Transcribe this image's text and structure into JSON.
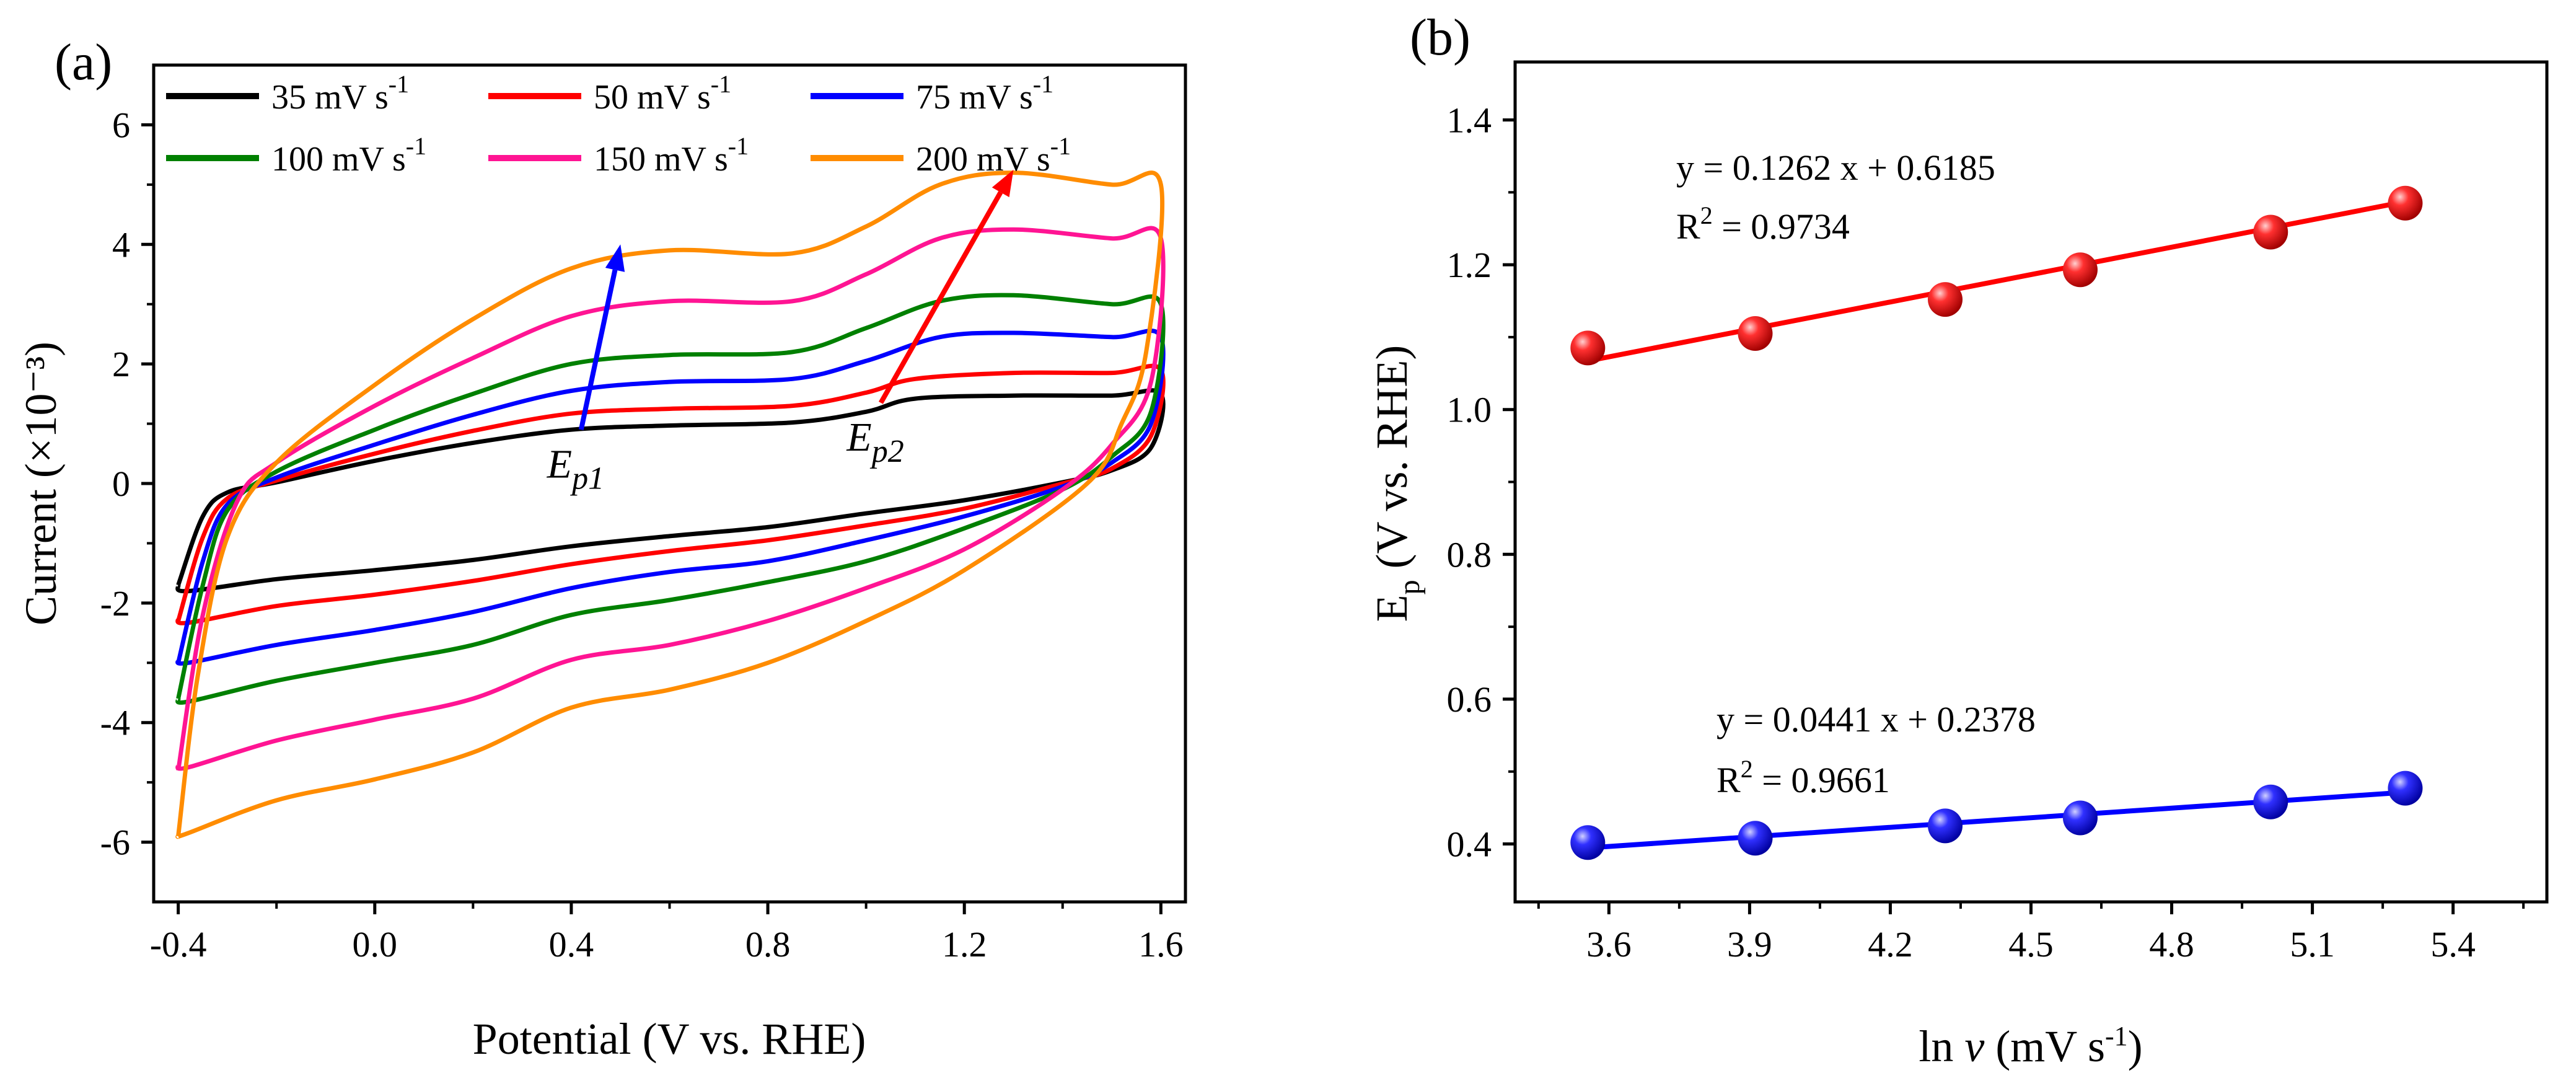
{
  "chart_data": [
    {
      "panel": "(a)",
      "type": "line",
      "title": "",
      "xlabel": "Potential (V vs. RHE)",
      "ylabel": "Current (×10⁻³)",
      "xlim": [
        -0.45,
        1.65
      ],
      "ylim": [
        -7,
        7
      ],
      "x_ticks": [
        "-0.4",
        "0.0",
        "0.4",
        "0.8",
        "1.2",
        "1.6"
      ],
      "x_tick_values": [
        -0.4,
        0.0,
        0.4,
        0.8,
        1.2,
        1.6
      ],
      "y_ticks": [
        "-6",
        "-4",
        "-2",
        "0",
        "2",
        "4",
        "6"
      ],
      "y_tick_values": [
        -6,
        -4,
        -2,
        0,
        2,
        4,
        6
      ],
      "legend_position": "top",
      "series": [
        {
          "name": "35 mV s-1",
          "label_main": "35 mV s",
          "label_sup": "-1",
          "color": "#000000",
          "scale": 1.0,
          "anodic": [
            [
              -0.4,
              -1.7
            ],
            [
              -0.35,
              -0.55
            ],
            [
              -0.3,
              -0.15
            ],
            [
              -0.2,
              0.02
            ],
            [
              0.0,
              0.38
            ],
            [
              0.2,
              0.68
            ],
            [
              0.4,
              0.9
            ],
            [
              0.6,
              0.97
            ],
            [
              0.85,
              1.02
            ],
            [
              1.0,
              1.2
            ],
            [
              1.1,
              1.42
            ],
            [
              1.3,
              1.47
            ],
            [
              1.5,
              1.47
            ],
            [
              1.6,
              1.5
            ]
          ],
          "cathodic": [
            [
              1.6,
              1.5
            ],
            [
              1.58,
              0.6
            ],
            [
              1.5,
              0.22
            ],
            [
              1.4,
              0.02
            ],
            [
              1.2,
              -0.28
            ],
            [
              1.0,
              -0.5
            ],
            [
              0.8,
              -0.73
            ],
            [
              0.6,
              -0.88
            ],
            [
              0.4,
              -1.05
            ],
            [
              0.2,
              -1.28
            ],
            [
              0.0,
              -1.45
            ],
            [
              -0.2,
              -1.6
            ],
            [
              -0.38,
              -1.8
            ],
            [
              -0.4,
              -1.7
            ]
          ]
        },
        {
          "name": "50 mV s-1",
          "label_main": "50 mV s",
          "label_sup": "-1",
          "color": "#ff0000",
          "scale": 1.26,
          "anodic": [
            [
              -0.4,
              -2.3
            ],
            [
              -0.35,
              -0.9
            ],
            [
              -0.3,
              -0.25
            ],
            [
              -0.2,
              0.05
            ],
            [
              0.0,
              0.5
            ],
            [
              0.2,
              0.88
            ],
            [
              0.4,
              1.17
            ],
            [
              0.6,
              1.25
            ],
            [
              0.85,
              1.3
            ],
            [
              1.0,
              1.52
            ],
            [
              1.1,
              1.75
            ],
            [
              1.3,
              1.85
            ],
            [
              1.5,
              1.85
            ],
            [
              1.6,
              1.9
            ]
          ],
          "cathodic": [
            [
              1.6,
              1.9
            ],
            [
              1.58,
              0.8
            ],
            [
              1.5,
              0.25
            ],
            [
              1.4,
              0.0
            ],
            [
              1.2,
              -0.42
            ],
            [
              1.0,
              -0.7
            ],
            [
              0.8,
              -0.95
            ],
            [
              0.6,
              -1.13
            ],
            [
              0.4,
              -1.35
            ],
            [
              0.2,
              -1.63
            ],
            [
              0.0,
              -1.86
            ],
            [
              -0.2,
              -2.05
            ],
            [
              -0.38,
              -2.33
            ],
            [
              -0.4,
              -2.25
            ]
          ]
        },
        {
          "name": "75 mV s-1",
          "label_main": "75 mV s",
          "label_sup": "-1",
          "color": "#0000ff",
          "scale": 1.6,
          "anodic": [
            [
              -0.4,
              -3.0
            ],
            [
              -0.35,
              -1.3
            ],
            [
              -0.3,
              -0.35
            ],
            [
              -0.2,
              0.1
            ],
            [
              0.0,
              0.65
            ],
            [
              0.2,
              1.15
            ],
            [
              0.4,
              1.55
            ],
            [
              0.6,
              1.7
            ],
            [
              0.85,
              1.75
            ],
            [
              1.0,
              2.05
            ],
            [
              1.15,
              2.45
            ],
            [
              1.3,
              2.52
            ],
            [
              1.5,
              2.45
            ],
            [
              1.6,
              2.45
            ]
          ],
          "cathodic": [
            [
              1.6,
              2.45
            ],
            [
              1.58,
              1.0
            ],
            [
              1.5,
              0.35
            ],
            [
              1.4,
              -0.05
            ],
            [
              1.2,
              -0.55
            ],
            [
              1.0,
              -0.95
            ],
            [
              0.8,
              -1.3
            ],
            [
              0.6,
              -1.48
            ],
            [
              0.4,
              -1.75
            ],
            [
              0.2,
              -2.15
            ],
            [
              0.0,
              -2.45
            ],
            [
              -0.2,
              -2.7
            ],
            [
              -0.38,
              -3.0
            ],
            [
              -0.4,
              -2.95
            ]
          ]
        },
        {
          "name": "100 mV s-1",
          "label_main": "100 mV s",
          "label_sup": "-1",
          "color": "#008000",
          "scale": 1.95,
          "anodic": [
            [
              -0.4,
              -3.6
            ],
            [
              -0.35,
              -1.7
            ],
            [
              -0.3,
              -0.45
            ],
            [
              -0.2,
              0.2
            ],
            [
              0.0,
              0.9
            ],
            [
              0.2,
              1.5
            ],
            [
              0.4,
              2.0
            ],
            [
              0.6,
              2.15
            ],
            [
              0.85,
              2.2
            ],
            [
              1.0,
              2.6
            ],
            [
              1.15,
              3.05
            ],
            [
              1.3,
              3.15
            ],
            [
              1.5,
              3.0
            ],
            [
              1.6,
              3.0
            ]
          ],
          "cathodic": [
            [
              1.6,
              3.0
            ],
            [
              1.58,
              1.2
            ],
            [
              1.5,
              0.45
            ],
            [
              1.4,
              -0.1
            ],
            [
              1.2,
              -0.75
            ],
            [
              1.0,
              -1.3
            ],
            [
              0.8,
              -1.65
            ],
            [
              0.6,
              -1.95
            ],
            [
              0.4,
              -2.2
            ],
            [
              0.2,
              -2.7
            ],
            [
              0.0,
              -3.0
            ],
            [
              -0.2,
              -3.3
            ],
            [
              -0.38,
              -3.65
            ],
            [
              -0.4,
              -3.6
            ]
          ]
        },
        {
          "name": "150 mV s-1",
          "label_main": "150 mV s",
          "label_sup": "-1",
          "color": "#ff1493",
          "scale": 2.6,
          "anodic": [
            [
              -0.4,
              -4.8
            ],
            [
              -0.35,
              -2.2
            ],
            [
              -0.28,
              -0.3
            ],
            [
              -0.2,
              0.35
            ],
            [
              0.0,
              1.3
            ],
            [
              0.2,
              2.1
            ],
            [
              0.4,
              2.8
            ],
            [
              0.6,
              3.05
            ],
            [
              0.85,
              3.05
            ],
            [
              1.0,
              3.5
            ],
            [
              1.15,
              4.1
            ],
            [
              1.3,
              4.25
            ],
            [
              1.5,
              4.1
            ],
            [
              1.6,
              4.1
            ]
          ],
          "cathodic": [
            [
              1.6,
              4.1
            ],
            [
              1.58,
              1.7
            ],
            [
              1.5,
              0.65
            ],
            [
              1.4,
              -0.1
            ],
            [
              1.2,
              -1.1
            ],
            [
              1.0,
              -1.75
            ],
            [
              0.8,
              -2.3
            ],
            [
              0.6,
              -2.7
            ],
            [
              0.4,
              -2.95
            ],
            [
              0.2,
              -3.6
            ],
            [
              0.0,
              -3.95
            ],
            [
              -0.2,
              -4.3
            ],
            [
              -0.38,
              -4.75
            ],
            [
              -0.4,
              -4.7
            ]
          ]
        },
        {
          "name": "200 mV s-1",
          "label_main": "200 mV s",
          "label_sup": "-1",
          "color": "#ff8c00",
          "scale": 3.35,
          "anodic": [
            [
              -0.4,
              -5.9
            ],
            [
              -0.36,
              -3.2
            ],
            [
              -0.3,
              -0.9
            ],
            [
              -0.2,
              0.35
            ],
            [
              0.0,
              1.65
            ],
            [
              0.2,
              2.75
            ],
            [
              0.4,
              3.6
            ],
            [
              0.6,
              3.9
            ],
            [
              0.85,
              3.85
            ],
            [
              1.0,
              4.3
            ],
            [
              1.15,
              5.0
            ],
            [
              1.3,
              5.2
            ],
            [
              1.5,
              5.0
            ],
            [
              1.6,
              5.0
            ]
          ],
          "cathodic": [
            [
              1.6,
              5.0
            ],
            [
              1.57,
              2.2
            ],
            [
              1.52,
              1.0
            ],
            [
              1.45,
              0.0
            ],
            [
              1.2,
              -1.45
            ],
            [
              1.0,
              -2.3
            ],
            [
              0.8,
              -3.0
            ],
            [
              0.6,
              -3.45
            ],
            [
              0.4,
              -3.75
            ],
            [
              0.2,
              -4.5
            ],
            [
              0.0,
              -4.95
            ],
            [
              -0.2,
              -5.3
            ],
            [
              -0.38,
              -5.85
            ],
            [
              -0.4,
              -5.9
            ]
          ]
        }
      ],
      "annotations": [
        {
          "text_main": "E",
          "text_sub": "p1",
          "at": [
            0.42,
            0.1
          ],
          "arrow_from": [
            0.42,
            0.9
          ],
          "arrow_to": [
            0.5,
            4.0
          ],
          "color": "#0000ff"
        },
        {
          "text_main": "E",
          "text_sub": "p2",
          "at": [
            1.03,
            0.55
          ],
          "arrow_from": [
            1.03,
            1.35
          ],
          "arrow_to": [
            1.3,
            5.25
          ],
          "color": "#ff0000"
        }
      ]
    },
    {
      "panel": "(b)",
      "type": "scatter",
      "title": "",
      "xlabel_main": "ln ",
      "xlabel_var": "v",
      "xlabel_unit": " (mV s",
      "xlabel_sup": "-1",
      "xlabel_close": ")",
      "ylabel_main": "E",
      "ylabel_sub": "p",
      "ylabel_rest": " (V vs. RHE)",
      "xlim": [
        3.4,
        5.6
      ],
      "ylim": [
        0.32,
        1.48
      ],
      "x_ticks": [
        "3.6",
        "3.9",
        "4.2",
        "4.5",
        "4.8",
        "5.1",
        "5.4"
      ],
      "x_tick_values": [
        3.6,
        3.9,
        4.2,
        4.5,
        4.8,
        5.1,
        5.4
      ],
      "y_ticks": [
        "0.4",
        "0.6",
        "0.8",
        "1.0",
        "1.2",
        "1.4"
      ],
      "y_tick_values": [
        0.4,
        0.6,
        0.8,
        1.0,
        1.2,
        1.4
      ],
      "series": [
        {
          "name": "Ep2",
          "color": "#ff0000",
          "x": [
            3.555,
            3.912,
            4.317,
            4.605,
            5.011,
            5.298
          ],
          "y": [
            1.085,
            1.105,
            1.152,
            1.193,
            1.245,
            1.285
          ],
          "fit": {
            "slope": 0.1262,
            "intercept": 0.6185,
            "equation": "y = 0.1262 x + 0.6185",
            "r2_main": "R",
            "r2_sup": "2",
            "r2_value": " = 0.9734"
          }
        },
        {
          "name": "Ep1",
          "color": "#0000ff",
          "x": [
            3.555,
            3.912,
            4.317,
            4.605,
            5.011,
            5.298
          ],
          "y": [
            0.402,
            0.408,
            0.425,
            0.436,
            0.458,
            0.477
          ],
          "fit": {
            "slope": 0.0441,
            "intercept": 0.2378,
            "equation": "y = 0.0441 x + 0.2378",
            "r2_main": "R",
            "r2_sup": "2",
            "r2_value": " = 0.9661"
          }
        }
      ]
    }
  ]
}
